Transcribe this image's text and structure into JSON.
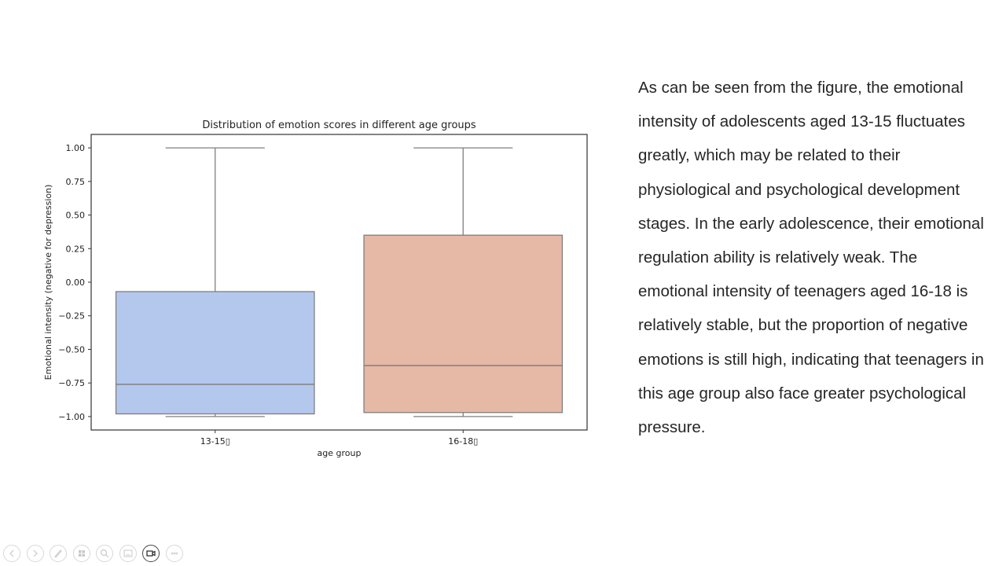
{
  "slide": {
    "paragraph": "As can be seen from the figure, the emotional intensity of adolescents aged 13-15 fluctuates greatly, which may be related to their physiological and psychological development stages. In the early adolescence, their emotional regulation ability is relatively weak. The emotional intensity of teenagers aged 16-18 is relatively stable, but the proportion of negative emotions is still high, indicating that teenagers in this age group also face greater psychological pressure."
  },
  "toolbar": {
    "buttons": [
      {
        "name": "previous-slide",
        "icon": "chevron-left-icon",
        "active": false
      },
      {
        "name": "next-slide",
        "icon": "chevron-right-icon",
        "active": false
      },
      {
        "name": "pen",
        "icon": "pen-icon",
        "active": false
      },
      {
        "name": "see-all-slides",
        "icon": "slides-grid-icon",
        "active": false
      },
      {
        "name": "zoom",
        "icon": "magnifier-icon",
        "active": false
      },
      {
        "name": "subtitles",
        "icon": "subtitles-icon",
        "active": false
      },
      {
        "name": "camera",
        "icon": "camera-icon",
        "active": true
      },
      {
        "name": "more-options",
        "icon": "ellipsis-icon",
        "active": false
      }
    ]
  },
  "chart_data": {
    "type": "box",
    "title": "Distribution of emotion scores in different age groups",
    "xlabel": "age group",
    "ylabel": "Emotional intensity (negative for depression)",
    "categories": [
      "13-15▯",
      "16-18▯"
    ],
    "ylim": [
      -1.1,
      1.1
    ],
    "yticks": [
      -1.0,
      -0.75,
      -0.5,
      -0.25,
      0.0,
      0.25,
      0.5,
      0.75,
      1.0
    ],
    "ytick_labels": [
      "−1.00",
      "−0.75",
      "−0.50",
      "−0.25",
      "0.00",
      "0.25",
      "0.50",
      "0.75",
      "1.00"
    ],
    "grid": false,
    "legend": null,
    "series": [
      {
        "name": "13-15▯",
        "whisker_low": -1.0,
        "q1": -0.98,
        "median": -0.76,
        "q3": -0.07,
        "whisker_high": 1.0,
        "color": "#b4c8ee"
      },
      {
        "name": "16-18▯",
        "whisker_low": -1.0,
        "q1": -0.97,
        "median": -0.62,
        "q3": 0.35,
        "whisker_high": 1.0,
        "color": "#e6b8a6"
      }
    ],
    "line_color": "#7f7f7f"
  }
}
